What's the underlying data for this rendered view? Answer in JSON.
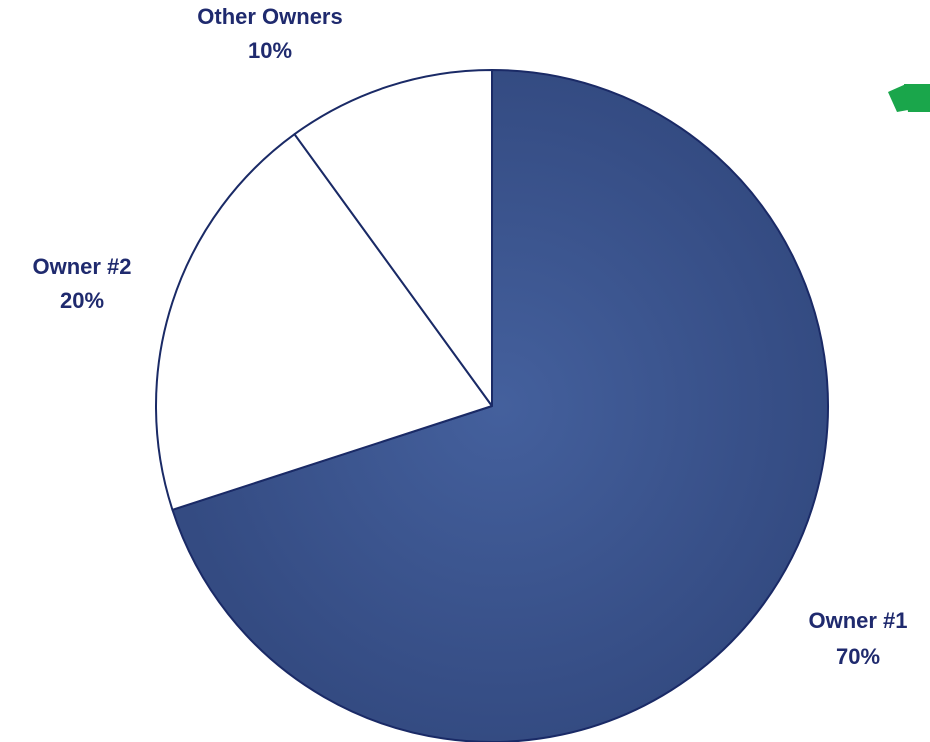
{
  "chart_data": {
    "type": "pie",
    "title": "",
    "slices": [
      {
        "label": "Owner #1",
        "value": 70,
        "value_label": "70%",
        "fill": "#3d5591"
      },
      {
        "label": "Owner #2",
        "value": 20,
        "value_label": "20%",
        "fill": "#ffffff"
      },
      {
        "label": "Other Owners",
        "value": 10,
        "value_label": "10%",
        "fill": "#ffffff"
      }
    ],
    "start": "12 o'clock",
    "direction": "clockwise",
    "legend": "none",
    "outline_color": "#1a2a66",
    "label_color": "#1f2a6e"
  },
  "accent": {
    "icon": "green-logo-icon",
    "color": "#1aa64b"
  }
}
